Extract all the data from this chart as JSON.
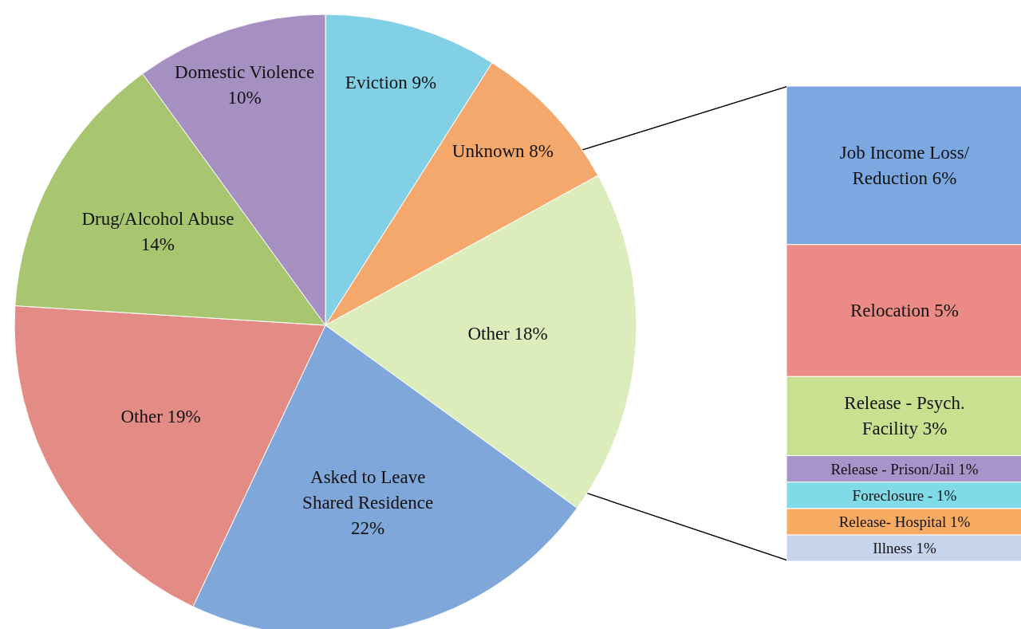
{
  "chart_data": [
    {
      "type": "pie",
      "categories": [
        "Eviction",
        "Unknown",
        "Other",
        "Asked to Leave Shared Residence",
        "Other",
        "Drug/Alcohol Abuse",
        "Domestic Violence"
      ],
      "values": [
        9,
        8,
        18,
        22,
        19,
        14,
        10
      ],
      "value_labels": [
        "9%",
        "8%",
        "18%",
        "22%",
        "19%",
        "14%",
        "10%"
      ],
      "colors": [
        "#82d0e6",
        "#f4a86c",
        "#dcecbb",
        "#80a7da",
        "#e38c86",
        "#a8c56f",
        "#a690c2"
      ]
    },
    {
      "type": "bar",
      "stacked": true,
      "categories": [
        null
      ],
      "series": [
        {
          "name": "Illness",
          "color": "#c6d4ec",
          "values": [
            1
          ],
          "value_labels": [
            "1%"
          ]
        },
        {
          "name": "Release- Hospital",
          "color": "#f8ab62",
          "values": [
            1
          ],
          "value_labels": [
            "1%"
          ]
        },
        {
          "name": "Foreclosure -",
          "color": "#80dbe9",
          "values": [
            1
          ],
          "value_labels": [
            "1%"
          ]
        },
        {
          "name": "Release - Prison/Jail",
          "color": "#a893ca",
          "values": [
            1
          ],
          "value_labels": [
            "1%"
          ]
        },
        {
          "name": "Release - Psych. Facility",
          "color": "#c9e091",
          "values": [
            3
          ],
          "value_labels": [
            "3%"
          ]
        },
        {
          "name": "Relocation",
          "color": "#ec8b85",
          "values": [
            5
          ],
          "value_labels": [
            "5%"
          ]
        },
        {
          "name": "Job Income Loss/ Reduction",
          "color": "#7ca8e1",
          "values": [
            6
          ],
          "value_labels": [
            "6%"
          ]
        }
      ]
    }
  ]
}
